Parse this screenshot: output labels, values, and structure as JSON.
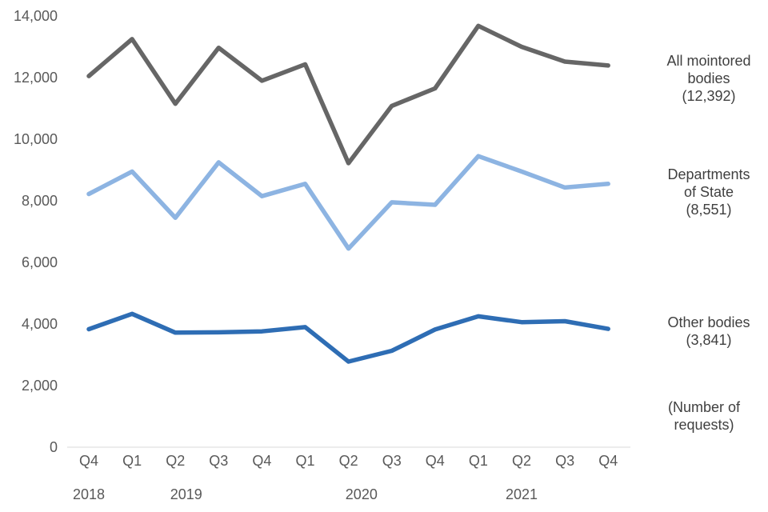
{
  "chart_data": {
    "type": "line",
    "categories": [
      "Q4",
      "Q1",
      "Q2",
      "Q3",
      "Q4",
      "Q1",
      "Q2",
      "Q3",
      "Q4",
      "Q1",
      "Q2",
      "Q3",
      "Q4"
    ],
    "year_labels": [
      {
        "label": "2018",
        "index": 0
      },
      {
        "label": "2019",
        "index": 2.25
      },
      {
        "label": "2020",
        "index": 6.3
      },
      {
        "label": "2021",
        "index": 10.0
      }
    ],
    "ylim": [
      0,
      14000
    ],
    "yticks": [
      0,
      2000,
      4000,
      6000,
      8000,
      10000,
      12000,
      14000
    ],
    "ytick_labels": [
      "0",
      "2,000",
      "4,000",
      "6,000",
      "8,000",
      "10,000",
      "12,000",
      "14,000"
    ],
    "grid": false,
    "unit_note": [
      "(Number of",
      "requests)"
    ],
    "series": [
      {
        "name": "All mointored bodies (12,392)",
        "label_lines": [
          "All mointored",
          "bodies",
          "(12,392)"
        ],
        "color": "#666666",
        "values": [
          12050,
          13250,
          11150,
          12970,
          11900,
          12430,
          9220,
          11080,
          11650,
          13680,
          13000,
          12520,
          12392
        ]
      },
      {
        "name": "Departments of State (8,551)",
        "label_lines": [
          "Departments",
          "of State",
          "(8,551)"
        ],
        "color": "#8DB4E2",
        "values": [
          8220,
          8950,
          7450,
          9250,
          8150,
          8550,
          6450,
          7950,
          7870,
          9450,
          8950,
          8430,
          8551
        ]
      },
      {
        "name": "Other bodies (3,841)",
        "label_lines": [
          "Other bodies",
          "(3,841)"
        ],
        "color": "#2E6DB4",
        "values": [
          3830,
          4330,
          3720,
          3730,
          3760,
          3900,
          2780,
          3130,
          3820,
          4250,
          4060,
          4090,
          3841
        ]
      }
    ]
  }
}
